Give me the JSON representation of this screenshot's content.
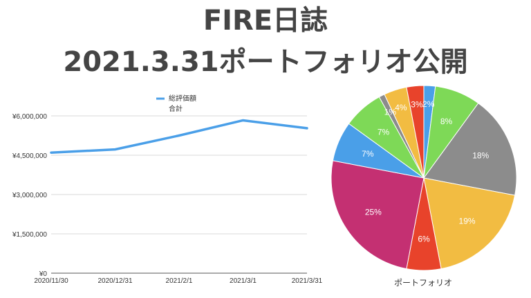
{
  "header": {
    "title_line1": "FIRE日誌",
    "title_line2": "2021.3.31ポートフォリオ公開"
  },
  "chart_data": [
    {
      "type": "line",
      "title": "",
      "xlabel": "",
      "ylabel": "",
      "x": [
        "2020/11/30",
        "2020/12/31",
        "2021/2/1",
        "2021/3/1",
        "2021/3/31"
      ],
      "series": [
        {
          "name": "総評価額 合計",
          "legend_lines": [
            "総評価額",
            "合計"
          ],
          "color": "#4a9fe8",
          "values": [
            4600000,
            4720000,
            5250000,
            5830000,
            5530000
          ]
        }
      ],
      "ylim": [
        0,
        6000000
      ],
      "yticks": [
        0,
        1500000,
        3000000,
        4500000,
        6000000
      ],
      "ytick_labels": [
        "¥0",
        "¥1,500,000",
        "¥3,000,000",
        "¥4,500,000",
        "¥6,000,000"
      ],
      "grid": true,
      "legend_placement": "top-center"
    },
    {
      "type": "pie",
      "title": "ポートフォリオ",
      "slices": [
        {
          "label": "2%",
          "value": 2,
          "color": "#4a9fe8"
        },
        {
          "label": "8%",
          "value": 8,
          "color": "#7ed957"
        },
        {
          "label": "18%",
          "value": 18,
          "color": "#8c8c8c"
        },
        {
          "label": "19%",
          "value": 19,
          "color": "#f2bc42"
        },
        {
          "label": "6%",
          "value": 6,
          "color": "#e8432b"
        },
        {
          "label": "25%",
          "value": 25,
          "color": "#c43072"
        },
        {
          "label": "7%",
          "value": 7,
          "color": "#4a9fe8"
        },
        {
          "label": "7%",
          "value": 7,
          "color": "#7ed957"
        },
        {
          "label": "1%",
          "value": 1,
          "color": "#8c8c8c"
        },
        {
          "label": "4%",
          "value": 4,
          "color": "#f2bc42"
        },
        {
          "label": "3%",
          "value": 3,
          "color": "#e8432b"
        }
      ]
    }
  ]
}
